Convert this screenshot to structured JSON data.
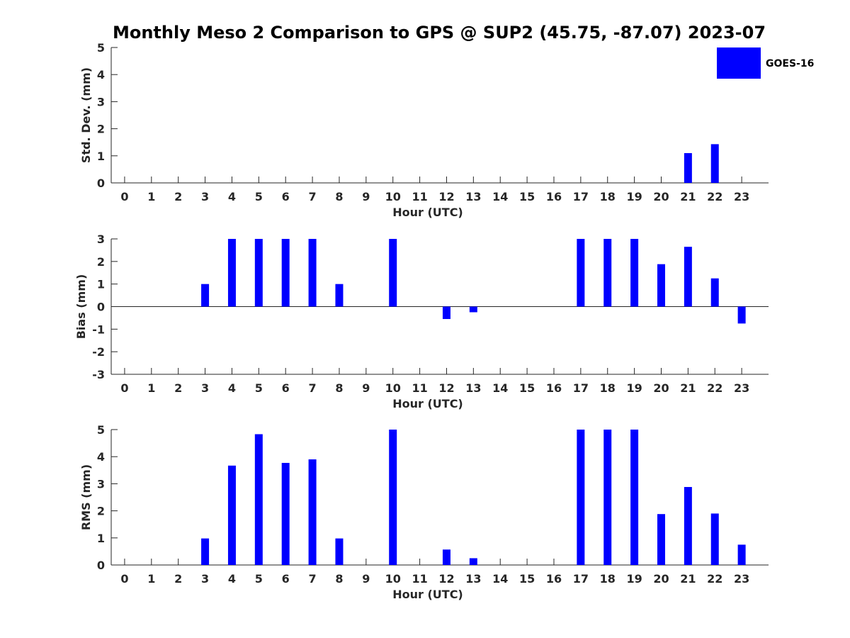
{
  "title": "Monthly Meso 2 Comparison to GPS @ SUP2 (45.75, -87.07) 2023-07",
  "legend": {
    "label": "GOES-16",
    "color": "#0000ff",
    "placement": "top-right"
  },
  "chart_data": [
    {
      "type": "bar",
      "categories": [
        "0",
        "1",
        "2",
        "3",
        "4",
        "5",
        "6",
        "7",
        "8",
        "9",
        "10",
        "11",
        "12",
        "13",
        "14",
        "15",
        "16",
        "17",
        "18",
        "19",
        "20",
        "21",
        "22",
        "23"
      ],
      "series": [
        {
          "name": "GOES-16",
          "values": [
            0,
            0,
            0,
            0,
            0,
            0,
            0,
            0,
            0,
            0,
            0,
            0,
            0,
            0,
            0,
            0,
            0,
            0,
            0,
            0,
            0,
            1.1,
            1.43,
            0
          ]
        }
      ],
      "xlabel": "Hour (UTC)",
      "ylabel": "Std. Dev. (mm)",
      "ylim": [
        0,
        5
      ],
      "yticks": [
        "0",
        "1",
        "2",
        "3",
        "4",
        "5"
      ],
      "grid": false
    },
    {
      "type": "bar",
      "categories": [
        "0",
        "1",
        "2",
        "3",
        "4",
        "5",
        "6",
        "7",
        "8",
        "9",
        "10",
        "11",
        "12",
        "13",
        "14",
        "15",
        "16",
        "17",
        "18",
        "19",
        "20",
        "21",
        "22",
        "23"
      ],
      "series": [
        {
          "name": "GOES-16",
          "values": [
            0,
            0,
            0,
            1,
            3,
            3,
            3,
            3,
            1,
            0,
            3,
            0,
            -0.55,
            -0.25,
            0,
            0,
            0,
            3,
            3,
            3,
            1.88,
            2.65,
            1.25,
            -0.75
          ]
        }
      ],
      "xlabel": "Hour (UTC)",
      "ylabel": "Bias (mm)",
      "ylim": [
        -3,
        3
      ],
      "yticks": [
        "-3",
        "-2",
        "-1",
        "0",
        "1",
        "2",
        "3"
      ],
      "grid": false
    },
    {
      "type": "bar",
      "categories": [
        "0",
        "1",
        "2",
        "3",
        "4",
        "5",
        "6",
        "7",
        "8",
        "9",
        "10",
        "11",
        "12",
        "13",
        "14",
        "15",
        "16",
        "17",
        "18",
        "19",
        "20",
        "21",
        "22",
        "23"
      ],
      "series": [
        {
          "name": "GOES-16",
          "values": [
            0,
            0,
            0,
            0.98,
            3.67,
            4.83,
            3.77,
            3.9,
            0.98,
            0,
            5,
            0,
            0.57,
            0.25,
            0,
            0,
            0,
            5,
            5,
            5,
            1.88,
            2.88,
            1.9,
            0.75
          ]
        }
      ],
      "xlabel": "Hour (UTC)",
      "ylabel": "RMS (mm)",
      "ylim": [
        0,
        5
      ],
      "yticks": [
        "0",
        "1",
        "2",
        "3",
        "4",
        "5"
      ],
      "grid": false
    }
  ]
}
